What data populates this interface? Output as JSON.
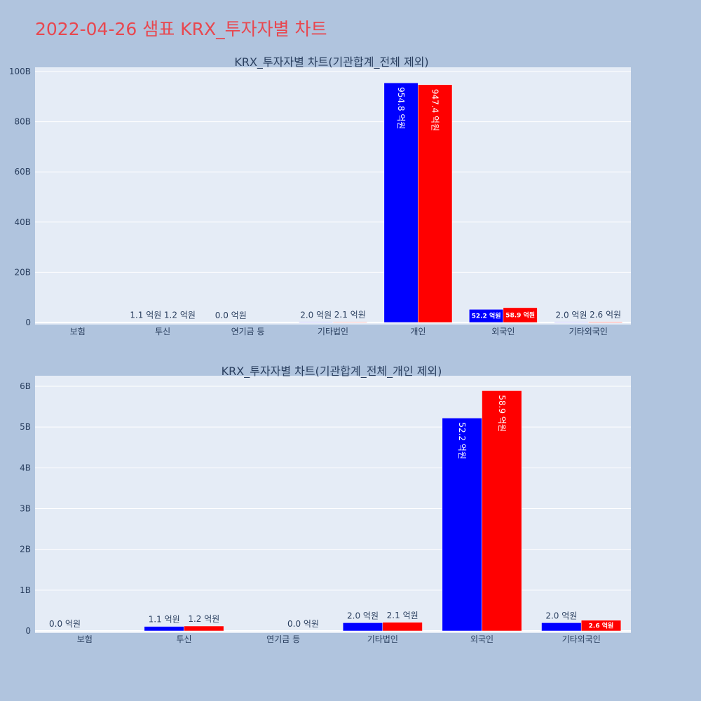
{
  "page": {
    "title": "2022-04-26 샘표 KRX_투자자별 차트",
    "background": "#b0c4de",
    "title_color": "#e8474f",
    "plot_background": "#e5ecf6",
    "grid_color": "#ffffff"
  },
  "chart_data": [
    {
      "type": "bar",
      "title": "KRX_투자자별 차트(기관합계_전체 제외)",
      "categories": [
        "보험",
        "투신",
        "연기금 등",
        "기타법인",
        "개인",
        "외국인",
        "기타외국인"
      ],
      "series": [
        {
          "color": "#0000ff",
          "values": [
            0,
            110000000,
            0,
            200000000,
            95480000000,
            5220000000,
            200000000
          ],
          "labels": [
            "",
            "1.1 억원",
            "0.0 억원",
            "2.0 억원",
            "954.8 억원",
            "52.2 억원",
            "2.0 억원"
          ]
        },
        {
          "color": "#ff0000",
          "values": [
            0,
            120000000,
            0,
            210000000,
            94740000000,
            5890000000,
            260000000
          ],
          "labels": [
            "",
            "1.2 억원",
            "",
            "2.1 억원",
            "947.4 억원",
            "58.9 억원",
            "2.6 억원"
          ]
        }
      ],
      "ylim": [
        0,
        100000000000
      ],
      "yticks": [
        0,
        20000000000,
        40000000000,
        60000000000,
        80000000000,
        100000000000
      ],
      "ytick_labels": [
        "0",
        "20B",
        "40B",
        "60B",
        "80B",
        "100B"
      ],
      "xlabel": "",
      "ylabel": "",
      "grid": true
    },
    {
      "type": "bar",
      "title": "KRX_투자자별 차트(기관합계_전체_개인 제외)",
      "categories": [
        "보험",
        "투신",
        "연기금 등",
        "기타법인",
        "외국인",
        "기타외국인"
      ],
      "series": [
        {
          "color": "#0000ff",
          "values": [
            0,
            110000000,
            0,
            200000000,
            5220000000,
            200000000
          ],
          "labels": [
            "0.0 억원",
            "1.1 억원",
            "",
            "2.0 억원",
            "52.2 억원",
            "2.0 억원"
          ]
        },
        {
          "color": "#ff0000",
          "values": [
            0,
            120000000,
            0,
            210000000,
            5890000000,
            260000000
          ],
          "labels": [
            "",
            "1.2 억원",
            "0.0 억원",
            "2.1 억원",
            "58.9 억원",
            "2.6 억원"
          ]
        }
      ],
      "ylim": [
        0,
        6000000000
      ],
      "yticks": [
        0,
        1000000000,
        2000000000,
        3000000000,
        4000000000,
        5000000000,
        6000000000
      ],
      "ytick_labels": [
        "0",
        "1B",
        "2B",
        "3B",
        "4B",
        "5B",
        "6B"
      ],
      "xlabel": "",
      "ylabel": "",
      "grid": true
    }
  ]
}
